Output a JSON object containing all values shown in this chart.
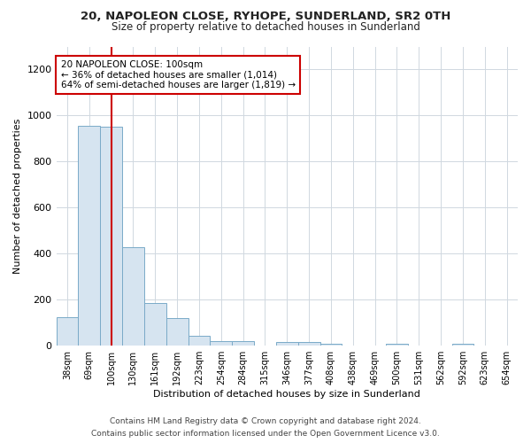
{
  "title": "20, NAPOLEON CLOSE, RYHOPE, SUNDERLAND, SR2 0TH",
  "subtitle": "Size of property relative to detached houses in Sunderland",
  "xlabel": "Distribution of detached houses by size in Sunderland",
  "ylabel": "Number of detached properties",
  "footer_line1": "Contains HM Land Registry data © Crown copyright and database right 2024.",
  "footer_line2": "Contains public sector information licensed under the Open Government Licence v3.0.",
  "annotation_title": "20 NAPOLEON CLOSE: 100sqm",
  "annotation_line1": "← 36% of detached houses are smaller (1,014)",
  "annotation_line2": "64% of semi-detached houses are larger (1,819) →",
  "bar_color": "#d6e4f0",
  "bar_edge_color": "#7aaac8",
  "ref_line_color": "#cc0000",
  "ref_line_x": 2,
  "annotation_box_color": "#cc0000",
  "categories": [
    "38sqm",
    "69sqm",
    "100sqm",
    "130sqm",
    "161sqm",
    "192sqm",
    "223sqm",
    "254sqm",
    "284sqm",
    "315sqm",
    "346sqm",
    "377sqm",
    "408sqm",
    "438sqm",
    "469sqm",
    "500sqm",
    "531sqm",
    "562sqm",
    "592sqm",
    "623sqm",
    "654sqm"
  ],
  "values": [
    125,
    955,
    950,
    430,
    185,
    120,
    45,
    20,
    20,
    0,
    15,
    15,
    10,
    0,
    0,
    10,
    0,
    0,
    10,
    0,
    0
  ],
  "ylim": [
    0,
    1300
  ],
  "yticks": [
    0,
    200,
    400,
    600,
    800,
    1000,
    1200
  ],
  "background_color": "#ffffff",
  "plot_bg_color": "#ffffff",
  "grid_color": "#d0d8e0"
}
